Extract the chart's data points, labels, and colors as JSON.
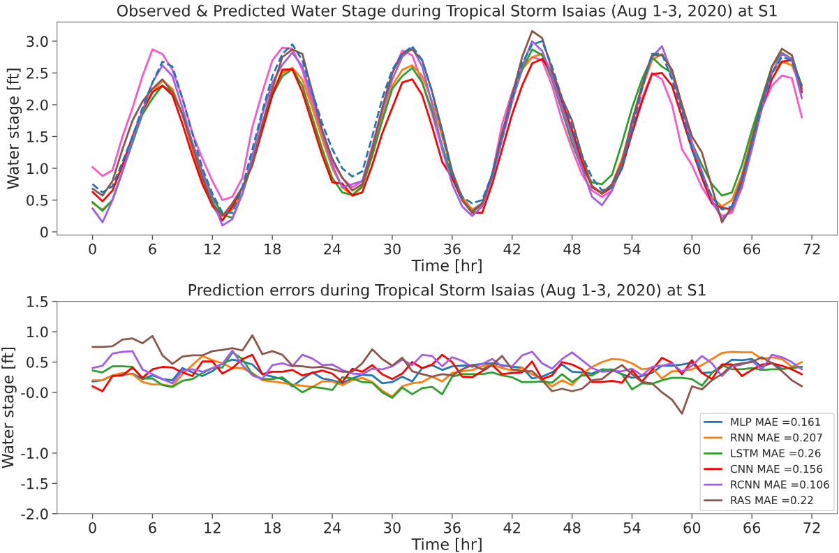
{
  "chart_data": [
    {
      "type": "line",
      "title": "Observed & Predicted Water Stage during Tropical Storm Isaias (Aug 1-3, 2020) at S1",
      "xlabel": "Time [hr]",
      "ylabel": "Water stage [ft]",
      "x": [
        0,
        1,
        2,
        3,
        4,
        5,
        6,
        7,
        8,
        9,
        10,
        11,
        12,
        13,
        14,
        15,
        16,
        17,
        18,
        19,
        20,
        21,
        22,
        23,
        24,
        25,
        26,
        27,
        28,
        29,
        30,
        31,
        32,
        33,
        34,
        35,
        36,
        37,
        38,
        39,
        40,
        41,
        42,
        43,
        44,
        45,
        46,
        47,
        48,
        49,
        50,
        51,
        52,
        53,
        54,
        55,
        56,
        57,
        58,
        59,
        60,
        61,
        62,
        63,
        64,
        65,
        66,
        67,
        68,
        69,
        70,
        71
      ],
      "xlim": [
        -3.55,
        74.55
      ],
      "xticks": [
        0,
        6,
        12,
        18,
        24,
        30,
        36,
        42,
        48,
        54,
        60,
        66,
        72
      ],
      "ylim": [
        -0.05,
        3.3
      ],
      "yticks": [
        0,
        0.5,
        {
          "value": 1,
          "label": "1.0"
        },
        1.5,
        {
          "value": 2,
          "label": "2.0"
        },
        2.5,
        {
          "value": 3,
          "label": "3.0"
        }
      ],
      "grid": false,
      "legend": false,
      "marker": "none",
      "series": [
        {
          "color": "#ff55cc",
          "values": [
            1.02,
            0.88,
            0.97,
            1.5,
            1.95,
            2.45,
            2.87,
            2.8,
            2.55,
            2.1,
            1.55,
            1.15,
            0.8,
            0.5,
            0.55,
            0.85,
            1.65,
            2.2,
            2.7,
            2.9,
            2.88,
            2.55,
            2.0,
            1.5,
            1.1,
            0.85,
            0.7,
            0.8,
            1.35,
            1.95,
            2.5,
            2.85,
            2.78,
            2.35,
            1.85,
            1.3,
            0.85,
            0.55,
            0.35,
            0.45,
            0.9,
            1.7,
            2.2,
            2.6,
            2.75,
            2.7,
            2.3,
            1.75,
            1.3,
            0.9,
            0.65,
            0.55,
            0.65,
            1.05,
            1.6,
            2.1,
            2.5,
            2.4,
            2.0,
            1.3,
            1.05,
            0.7,
            0.45,
            0.25,
            0.3,
            0.7,
            1.35,
            1.95,
            2.3,
            2.46,
            2.42,
            1.8
          ]
        },
        {
          "color": "#ff7f0e",
          "values": [
            0.45,
            0.35,
            0.5,
            0.95,
            1.45,
            1.9,
            2.2,
            2.38,
            2.25,
            1.85,
            1.3,
            0.8,
            0.4,
            0.27,
            0.35,
            0.6,
            1.1,
            1.7,
            2.2,
            2.5,
            2.58,
            2.4,
            1.95,
            1.45,
            1.0,
            0.7,
            0.57,
            0.7,
            1.2,
            1.8,
            2.3,
            2.55,
            2.62,
            2.45,
            2.05,
            1.5,
            0.95,
            0.55,
            0.35,
            0.4,
            0.85,
            1.5,
            2.05,
            2.55,
            2.75,
            2.8,
            2.5,
            2.05,
            1.55,
            1.05,
            0.7,
            0.62,
            0.75,
            1.15,
            1.7,
            2.25,
            2.7,
            2.8,
            2.55,
            2.0,
            1.4,
            0.9,
            0.55,
            0.4,
            0.5,
            0.9,
            1.5,
            2.05,
            2.5,
            2.68,
            2.62,
            2.25
          ]
        },
        {
          "color": "#2ca02c",
          "values": [
            0.47,
            0.33,
            0.5,
            0.95,
            1.4,
            1.85,
            2.1,
            2.3,
            2.2,
            1.85,
            1.4,
            0.95,
            0.55,
            0.27,
            0.22,
            0.6,
            1.1,
            1.65,
            2.15,
            2.45,
            2.56,
            2.3,
            1.8,
            1.3,
            0.85,
            0.62,
            0.58,
            0.72,
            1.2,
            1.75,
            2.25,
            2.45,
            2.58,
            2.35,
            1.9,
            1.35,
            0.85,
            0.5,
            0.32,
            0.45,
            0.9,
            1.55,
            2.1,
            2.55,
            2.87,
            2.78,
            2.4,
            1.9,
            1.4,
            1.0,
            0.78,
            0.75,
            0.9,
            1.4,
            1.95,
            2.4,
            2.75,
            2.6,
            2.5,
            1.95,
            1.4,
            1.05,
            0.75,
            0.57,
            0.62,
            1.05,
            1.6,
            2.1,
            2.6,
            2.82,
            2.72,
            2.3
          ]
        },
        {
          "color": "#ff0000",
          "values": [
            0.63,
            0.48,
            0.65,
            1.05,
            1.5,
            1.9,
            2.2,
            2.3,
            2.15,
            1.7,
            1.2,
            0.75,
            0.42,
            0.18,
            0.4,
            0.7,
            1.05,
            1.6,
            2.15,
            2.55,
            2.56,
            2.2,
            1.7,
            1.2,
            0.78,
            0.76,
            0.57,
            0.62,
            1.05,
            1.55,
            1.95,
            2.35,
            2.4,
            2.15,
            1.65,
            1.1,
            0.85,
            0.5,
            0.3,
            0.3,
            0.75,
            1.3,
            1.85,
            2.3,
            2.65,
            2.72,
            2.5,
            2.05,
            1.6,
            1.1,
            0.72,
            0.6,
            0.7,
            1.0,
            1.55,
            2.05,
            2.48,
            2.5,
            2.3,
            1.8,
            1.3,
            0.85,
            0.45,
            0.38,
            0.35,
            0.75,
            1.35,
            1.95,
            2.4,
            2.68,
            2.7,
            2.2
          ]
        },
        {
          "color": "#a25ee8",
          "values": [
            0.37,
            0.15,
            0.5,
            0.95,
            1.45,
            1.9,
            2.35,
            2.62,
            2.45,
            1.95,
            1.4,
            0.9,
            0.5,
            0.1,
            0.2,
            0.6,
            1.2,
            1.85,
            2.35,
            2.63,
            2.82,
            2.6,
            2.1,
            1.55,
            1.05,
            0.7,
            0.75,
            0.8,
            1.3,
            1.9,
            2.4,
            2.75,
            2.9,
            2.6,
            2.0,
            1.3,
            0.75,
            0.4,
            0.25,
            0.4,
            0.85,
            1.45,
            2.05,
            2.6,
            3.0,
            2.85,
            2.45,
            1.95,
            1.5,
            1.0,
            0.55,
            0.42,
            0.65,
            1.1,
            1.7,
            2.3,
            2.75,
            2.92,
            2.5,
            1.95,
            1.4,
            0.95,
            0.5,
            0.2,
            0.35,
            0.7,
            1.3,
            1.95,
            2.5,
            2.8,
            2.72,
            2.1
          ]
        },
        {
          "color": "#8c564b",
          "values": [
            0.68,
            0.57,
            0.8,
            1.3,
            1.75,
            2.05,
            2.25,
            2.4,
            2.2,
            1.85,
            1.35,
            0.85,
            0.45,
            0.25,
            0.45,
            0.7,
            1.05,
            1.7,
            2.25,
            2.75,
            2.87,
            2.8,
            2.2,
            1.6,
            1.15,
            0.85,
            0.65,
            0.75,
            1.3,
            1.95,
            2.5,
            2.8,
            2.87,
            2.7,
            2.2,
            1.6,
            0.95,
            0.5,
            0.3,
            0.45,
            0.9,
            1.55,
            2.15,
            2.75,
            3.16,
            3.05,
            2.55,
            2.1,
            1.75,
            1.2,
            0.7,
            0.6,
            0.75,
            1.1,
            1.75,
            2.3,
            2.78,
            2.78,
            2.55,
            2.0,
            1.5,
            1.25,
            0.7,
            0.15,
            0.4,
            0.85,
            1.45,
            2.05,
            2.6,
            2.88,
            2.78,
            2.25
          ]
        },
        {
          "color": "#1f77b4",
          "line_style": "dashed",
          "values": [
            0.75,
            0.62,
            0.72,
            1.1,
            1.5,
            1.95,
            2.35,
            2.68,
            2.6,
            2.1,
            1.55,
            1.0,
            0.6,
            0.3,
            0.3,
            0.7,
            1.3,
            1.9,
            2.45,
            2.8,
            2.95,
            2.7,
            2.2,
            1.7,
            1.3,
            1.0,
            0.87,
            0.95,
            1.5,
            2.1,
            2.55,
            2.8,
            2.92,
            2.7,
            2.2,
            1.55,
            0.9,
            0.55,
            0.45,
            0.5,
            0.9,
            1.5,
            2.1,
            2.65,
            2.95,
            3.0,
            2.6,
            2.1,
            1.65,
            1.2,
            0.85,
            0.65,
            0.7,
            1.0,
            1.6,
            2.25,
            2.8,
            2.8,
            2.4,
            1.9,
            1.3,
            0.9,
            0.55,
            0.35,
            0.4,
            0.8,
            1.4,
            2.0,
            2.5,
            2.75,
            2.7,
            2.3
          ]
        }
      ]
    },
    {
      "type": "line",
      "title": "Prediction errors during Tropical Storm Isaias (Aug 1-3, 2020) at S1",
      "xlabel": "Time [hr]",
      "ylabel": "Water stage [ft]",
      "x": [
        0,
        1,
        2,
        3,
        4,
        5,
        6,
        7,
        8,
        9,
        10,
        11,
        12,
        13,
        14,
        15,
        16,
        17,
        18,
        19,
        20,
        21,
        22,
        23,
        24,
        25,
        26,
        27,
        28,
        29,
        30,
        31,
        32,
        33,
        34,
        35,
        36,
        37,
        38,
        39,
        40,
        41,
        42,
        43,
        44,
        45,
        46,
        47,
        48,
        49,
        50,
        51,
        52,
        53,
        54,
        55,
        56,
        57,
        58,
        59,
        60,
        61,
        62,
        63,
        64,
        65,
        66,
        67,
        68,
        69,
        70,
        71
      ],
      "xlim": [
        -3.55,
        74.55
      ],
      "xticks": [
        0,
        6,
        12,
        18,
        24,
        30,
        36,
        42,
        48,
        54,
        60,
        66,
        72
      ],
      "ylim": [
        -2.0,
        1.5
      ],
      "yticks": [
        {
          "value": 1.5,
          "label": "1.5"
        },
        {
          "value": 1.0,
          "label": "1.0"
        },
        {
          "value": 0.5,
          "label": "0.5"
        },
        {
          "value": 0,
          "label": "-0.0"
        },
        {
          "value": -1.0,
          "label": "-1.0"
        },
        {
          "value": -1.5,
          "label": "-1.5"
        },
        {
          "value": -2.0,
          "label": "-2.0"
        }
      ],
      "grid": false,
      "legend": "lower right",
      "marker": "none",
      "series": [
        {
          "name": "MLP MAE =0.161",
          "color": "#1f77b4",
          "values": [
            0.18,
            0.2,
            0.28,
            0.29,
            0.31,
            0.22,
            0.28,
            0.22,
            0.2,
            0.4,
            0.33,
            0.27,
            0.35,
            0.48,
            0.54,
            0.51,
            0.46,
            0.3,
            0.26,
            0.22,
            0.1,
            0.22,
            0.33,
            0.23,
            0.2,
            0.15,
            0.23,
            0.29,
            0.28,
            0.15,
            0.17,
            0.26,
            0.18,
            0.4,
            0.45,
            0.37,
            0.43,
            0.44,
            0.45,
            0.47,
            0.48,
            0.45,
            0.42,
            0.41,
            0.23,
            0.26,
            0.33,
            0.46,
            0.34,
            0.33,
            0.31,
            0.38,
            0.37,
            0.3,
            0.24,
            0.27,
            0.32,
            0.44,
            0.44,
            0.46,
            0.49,
            0.32,
            0.33,
            0.42,
            0.54,
            0.53,
            0.55,
            0.42,
            0.49,
            0.39,
            0.4,
            0.42
          ]
        },
        {
          "name": "RNN MAE =0.207",
          "color": "#ff7f0e",
          "values": [
            0.2,
            0.2,
            0.28,
            0.32,
            0.3,
            0.17,
            0.13,
            0.13,
            0.1,
            0.3,
            0.45,
            0.6,
            0.53,
            0.48,
            0.4,
            0.4,
            0.32,
            0.2,
            0.18,
            0.16,
            0.13,
            0.11,
            0.09,
            0.18,
            0.18,
            0.12,
            0.2,
            0.24,
            0.17,
            0.03,
            -0.07,
            0.1,
            0.15,
            0.17,
            0.26,
            0.18,
            0.32,
            0.35,
            0.37,
            0.43,
            0.46,
            0.4,
            0.36,
            0.4,
            0.3,
            0.22,
            0.1,
            0.2,
            0.12,
            0.3,
            0.42,
            0.5,
            0.55,
            0.54,
            0.48,
            0.38,
            0.4,
            0.23,
            0.35,
            0.35,
            0.38,
            0.45,
            0.55,
            0.65,
            0.67,
            0.66,
            0.66,
            0.55,
            0.58,
            0.55,
            0.42,
            0.5
          ]
        },
        {
          "name": "LSTM MAE =0.26",
          "color": "#2ca02c",
          "values": [
            0.36,
            0.33,
            0.43,
            0.43,
            0.42,
            0.23,
            0.23,
            0.12,
            0.09,
            0.19,
            0.22,
            0.32,
            0.4,
            0.41,
            0.66,
            0.55,
            0.3,
            0.22,
            0.22,
            0.25,
            0.12,
            0.0,
            0.09,
            0.07,
            0.04,
            0.25,
            0.23,
            0.17,
            0.16,
            0.0,
            -0.09,
            0.08,
            -0.03,
            0.07,
            0.09,
            -0.03,
            0.26,
            0.3,
            0.3,
            0.3,
            0.33,
            0.28,
            0.25,
            0.17,
            0.17,
            0.18,
            0.16,
            0.3,
            0.17,
            0.28,
            0.28,
            0.37,
            0.38,
            0.3,
            0.05,
            0.15,
            0.14,
            0.2,
            0.24,
            0.24,
            0.22,
            0.11,
            0.32,
            0.45,
            0.38,
            0.38,
            0.4,
            0.37,
            0.38,
            0.38,
            0.41,
            0.42
          ]
        },
        {
          "name": "CNN MAE =0.156",
          "color": "#ff0000",
          "values": [
            0.1,
            0.02,
            0.27,
            0.28,
            0.41,
            0.24,
            0.38,
            0.42,
            0.41,
            0.33,
            0.27,
            0.51,
            0.51,
            0.31,
            0.4,
            0.55,
            0.62,
            0.3,
            0.34,
            0.34,
            0.37,
            0.28,
            0.32,
            0.36,
            0.31,
            0.17,
            0.39,
            0.34,
            0.45,
            0.3,
            0.22,
            0.31,
            0.5,
            0.4,
            0.46,
            0.62,
            0.5,
            0.26,
            0.25,
            0.35,
            0.45,
            0.3,
            0.32,
            0.33,
            0.51,
            0.22,
            0.28,
            0.5,
            0.46,
            0.38,
            0.17,
            0.17,
            0.19,
            0.16,
            0.36,
            0.18,
            0.37,
            0.57,
            0.49,
            0.3,
            0.53,
            0.32,
            0.22,
            0.46,
            0.46,
            0.27,
            0.37,
            0.46,
            0.48,
            0.44,
            0.38,
            0.3
          ]
        },
        {
          "name": "RCNN MAE =0.106",
          "color": "#a25ee8",
          "values": [
            0.4,
            0.44,
            0.64,
            0.67,
            0.68,
            0.38,
            0.3,
            0.22,
            0.15,
            0.36,
            0.38,
            0.34,
            0.4,
            0.47,
            0.69,
            0.45,
            0.28,
            0.22,
            0.45,
            0.48,
            0.43,
            0.62,
            0.56,
            0.45,
            0.46,
            0.37,
            0.31,
            0.3,
            0.39,
            0.38,
            0.43,
            0.54,
            0.45,
            0.62,
            0.6,
            0.43,
            0.58,
            0.52,
            0.42,
            0.47,
            0.55,
            0.43,
            0.43,
            0.61,
            0.67,
            0.48,
            0.39,
            0.55,
            0.66,
            0.53,
            0.4,
            0.34,
            0.35,
            0.35,
            0.39,
            0.28,
            0.42,
            0.44,
            0.48,
            0.34,
            0.44,
            0.6,
            0.48,
            0.27,
            0.43,
            0.46,
            0.52,
            0.38,
            0.62,
            0.58,
            0.5,
            0.38
          ]
        },
        {
          "name": "RAS MAE =0.22",
          "color": "#8c564b",
          "values": [
            0.75,
            0.75,
            0.76,
            0.87,
            0.89,
            0.81,
            0.93,
            0.61,
            0.47,
            0.59,
            0.61,
            0.61,
            0.68,
            0.7,
            0.73,
            0.69,
            0.94,
            0.63,
            0.68,
            0.62,
            0.44,
            0.43,
            0.41,
            0.42,
            0.38,
            0.34,
            0.34,
            0.48,
            0.71,
            0.55,
            0.44,
            0.57,
            0.35,
            0.3,
            0.26,
            0.3,
            0.28,
            0.38,
            0.45,
            0.38,
            0.45,
            0.6,
            0.38,
            0.35,
            0.35,
            0.2,
            0.02,
            0.06,
            0.02,
            0.06,
            0.2,
            0.22,
            0.35,
            0.45,
            0.3,
            0.17,
            0.15,
            0.0,
            -0.12,
            -0.35,
            0.1,
            0.05,
            0.2,
            0.3,
            0.45,
            0.48,
            0.5,
            0.58,
            0.48,
            0.35,
            0.2,
            0.1
          ]
        }
      ]
    }
  ]
}
